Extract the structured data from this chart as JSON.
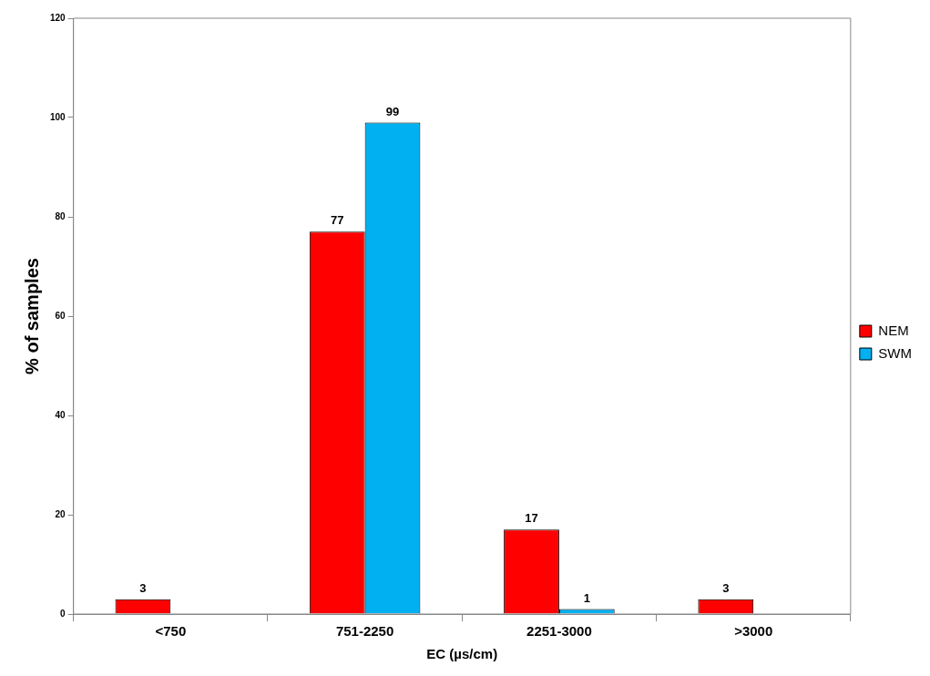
{
  "chart_data": {
    "type": "bar",
    "xlabel": "EC (µs/cm)",
    "ylabel": "% of samples",
    "categories": [
      "<750",
      "751-2250",
      "2251-3000",
      ">3000"
    ],
    "series": [
      {
        "name": "NEM",
        "color": "#ff0000",
        "values": [
          3,
          77,
          17,
          3
        ]
      },
      {
        "name": "SWM",
        "color": "#00b0f0",
        "values": [
          null,
          99,
          1,
          null
        ]
      }
    ],
    "ylim": [
      0,
      120
    ],
    "yticks": [
      0,
      20,
      40,
      60,
      80,
      100,
      120
    ],
    "grid": false,
    "legend": "right",
    "data_labels": true
  }
}
